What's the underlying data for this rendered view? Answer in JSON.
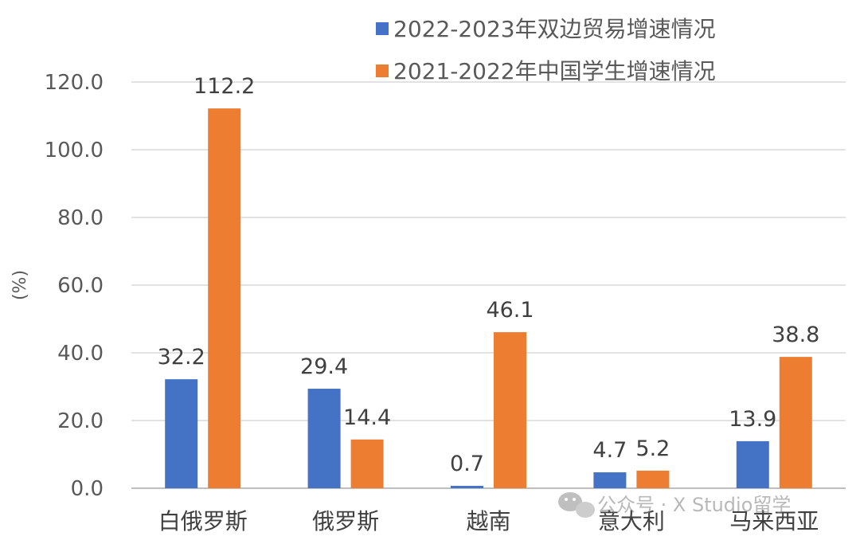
{
  "chart_data": {
    "type": "bar",
    "categories": [
      "白俄罗斯",
      "俄罗斯",
      "越南",
      "意大利",
      "马来西亚"
    ],
    "series": [
      {
        "name": "2022-2023年双边贸易增速情况",
        "values": [
          32.2,
          29.4,
          0.7,
          4.7,
          13.9
        ],
        "labels": [
          "32.2",
          "29.4",
          "0.7",
          "4.7",
          "13.9"
        ],
        "color": "#4472C4"
      },
      {
        "name": "2021-2022年中国学生增速情况",
        "values": [
          112.2,
          14.4,
          46.1,
          5.2,
          38.8
        ],
        "labels": [
          "112.2",
          "14.4",
          "46.1",
          "5.2",
          "38.8"
        ],
        "color": "#ED7D31"
      }
    ],
    "ylabel": "(%)",
    "ylim": [
      0,
      120
    ],
    "yticks": [
      "0.0",
      "20.0",
      "40.0",
      "60.0",
      "80.0",
      "100.0",
      "120.0"
    ],
    "grid": true,
    "legend_position": "top-right"
  },
  "watermark": {
    "icon": "wechat-icon",
    "text": "公众号 · X Studio留学"
  }
}
